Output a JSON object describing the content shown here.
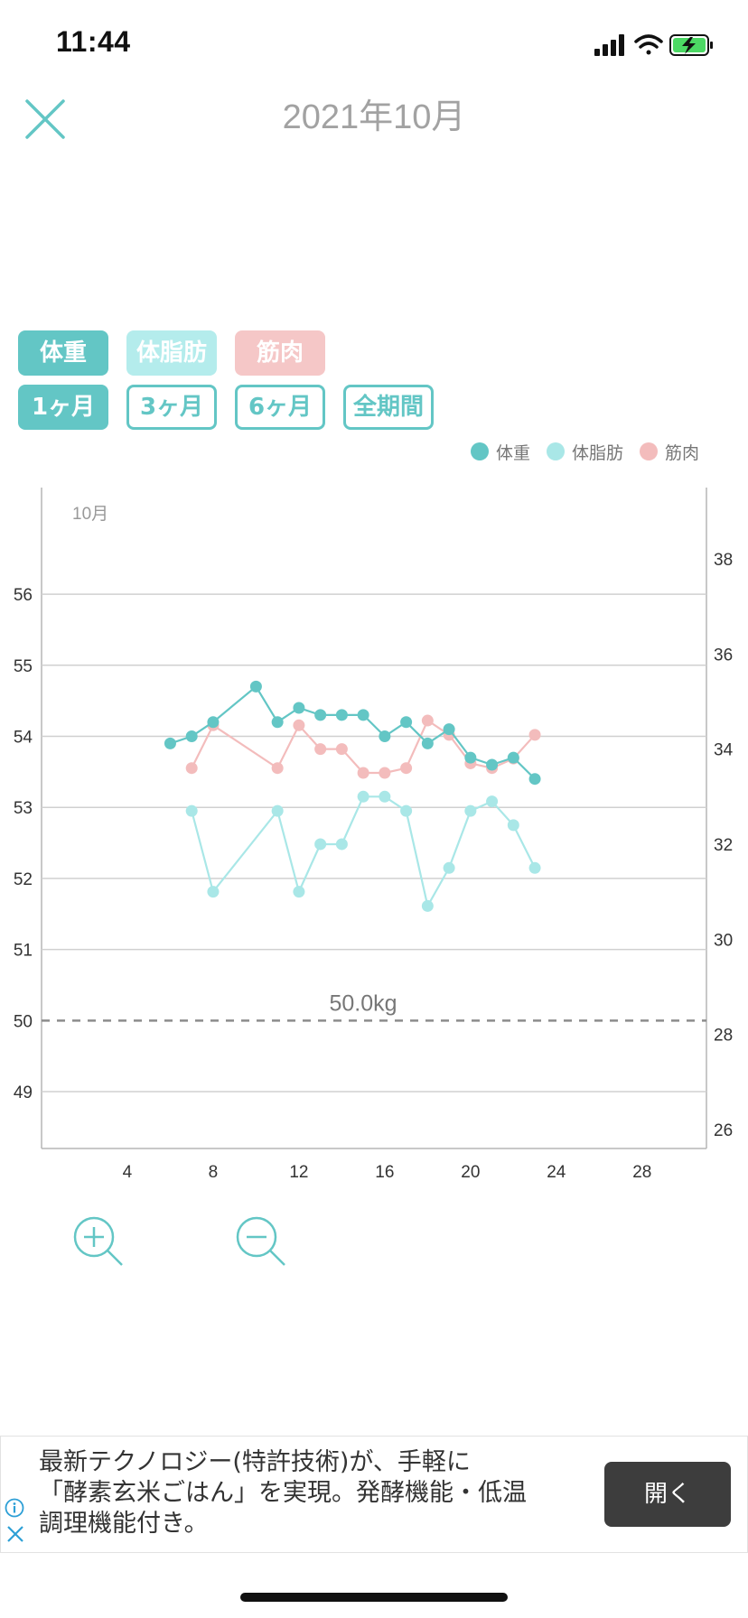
{
  "status": {
    "time": "11:44"
  },
  "header": {
    "title": "2021年10月"
  },
  "metric_buttons": [
    "体重",
    "体脂肪",
    "筋肉"
  ],
  "period_buttons": [
    "1ヶ月",
    "3ヶ月",
    "6ヶ月",
    "全期間"
  ],
  "legend": [
    "体重",
    "体脂肪",
    "筋肉"
  ],
  "colors": {
    "weight": "#63c6c5",
    "fat": "#a9e7e7",
    "muscle": "#f3bcbc",
    "accent": "#63c6c5"
  },
  "chart_data": {
    "type": "line",
    "month_label": "10月",
    "x_ticks": [
      4,
      8,
      12,
      16,
      20,
      24,
      28
    ],
    "y_left_ticks": [
      49,
      50,
      51,
      52,
      53,
      54,
      55,
      56
    ],
    "y_right_ticks": [
      26,
      28,
      30,
      32,
      34,
      36,
      38
    ],
    "xlim": [
      0,
      31
    ],
    "ylim_left": [
      48.2,
      57.5
    ],
    "ylim_right": [
      25.6,
      39.5
    ],
    "target_label": "50.0kg",
    "target_value": 50.0,
    "series": [
      {
        "name": "体重",
        "axis": "left",
        "color": "#63c6c5",
        "x": [
          6,
          7,
          8,
          10,
          11,
          12,
          13,
          14,
          15,
          16,
          17,
          18,
          19,
          20,
          21,
          22,
          23
        ],
        "y": [
          53.9,
          54.0,
          54.2,
          54.7,
          54.2,
          54.4,
          54.3,
          54.3,
          54.3,
          54.0,
          54.2,
          53.9,
          54.1,
          53.7,
          53.6,
          53.7,
          53.4
        ]
      },
      {
        "name": "体脂肪",
        "axis": "right",
        "color": "#a9e7e7",
        "x": [
          7,
          8,
          11,
          12,
          13,
          14,
          15,
          16,
          17,
          18,
          19,
          20,
          21,
          22,
          23
        ],
        "y": [
          32.7,
          31.0,
          32.7,
          31.0,
          32.0,
          32.0,
          33.0,
          33.0,
          32.7,
          30.7,
          31.5,
          32.7,
          32.9,
          32.4,
          31.5
        ]
      },
      {
        "name": "筋肉",
        "axis": "right",
        "color": "#f3bcbc",
        "x": [
          7,
          8,
          11,
          12,
          13,
          14,
          15,
          16,
          17,
          18,
          19,
          20,
          21,
          22,
          23
        ],
        "y": [
          33.6,
          34.5,
          33.6,
          34.5,
          34.0,
          34.0,
          33.5,
          33.5,
          33.6,
          34.6,
          34.3,
          33.7,
          33.6,
          33.8,
          34.3
        ]
      }
    ]
  },
  "ad": {
    "text_lines": [
      "最新テクノロジー(特許技術)が、手軽に",
      "「酵素玄米ごはん」を実現。発酵機能・低温",
      "調理機能付き。"
    ],
    "open_label": "開く"
  }
}
